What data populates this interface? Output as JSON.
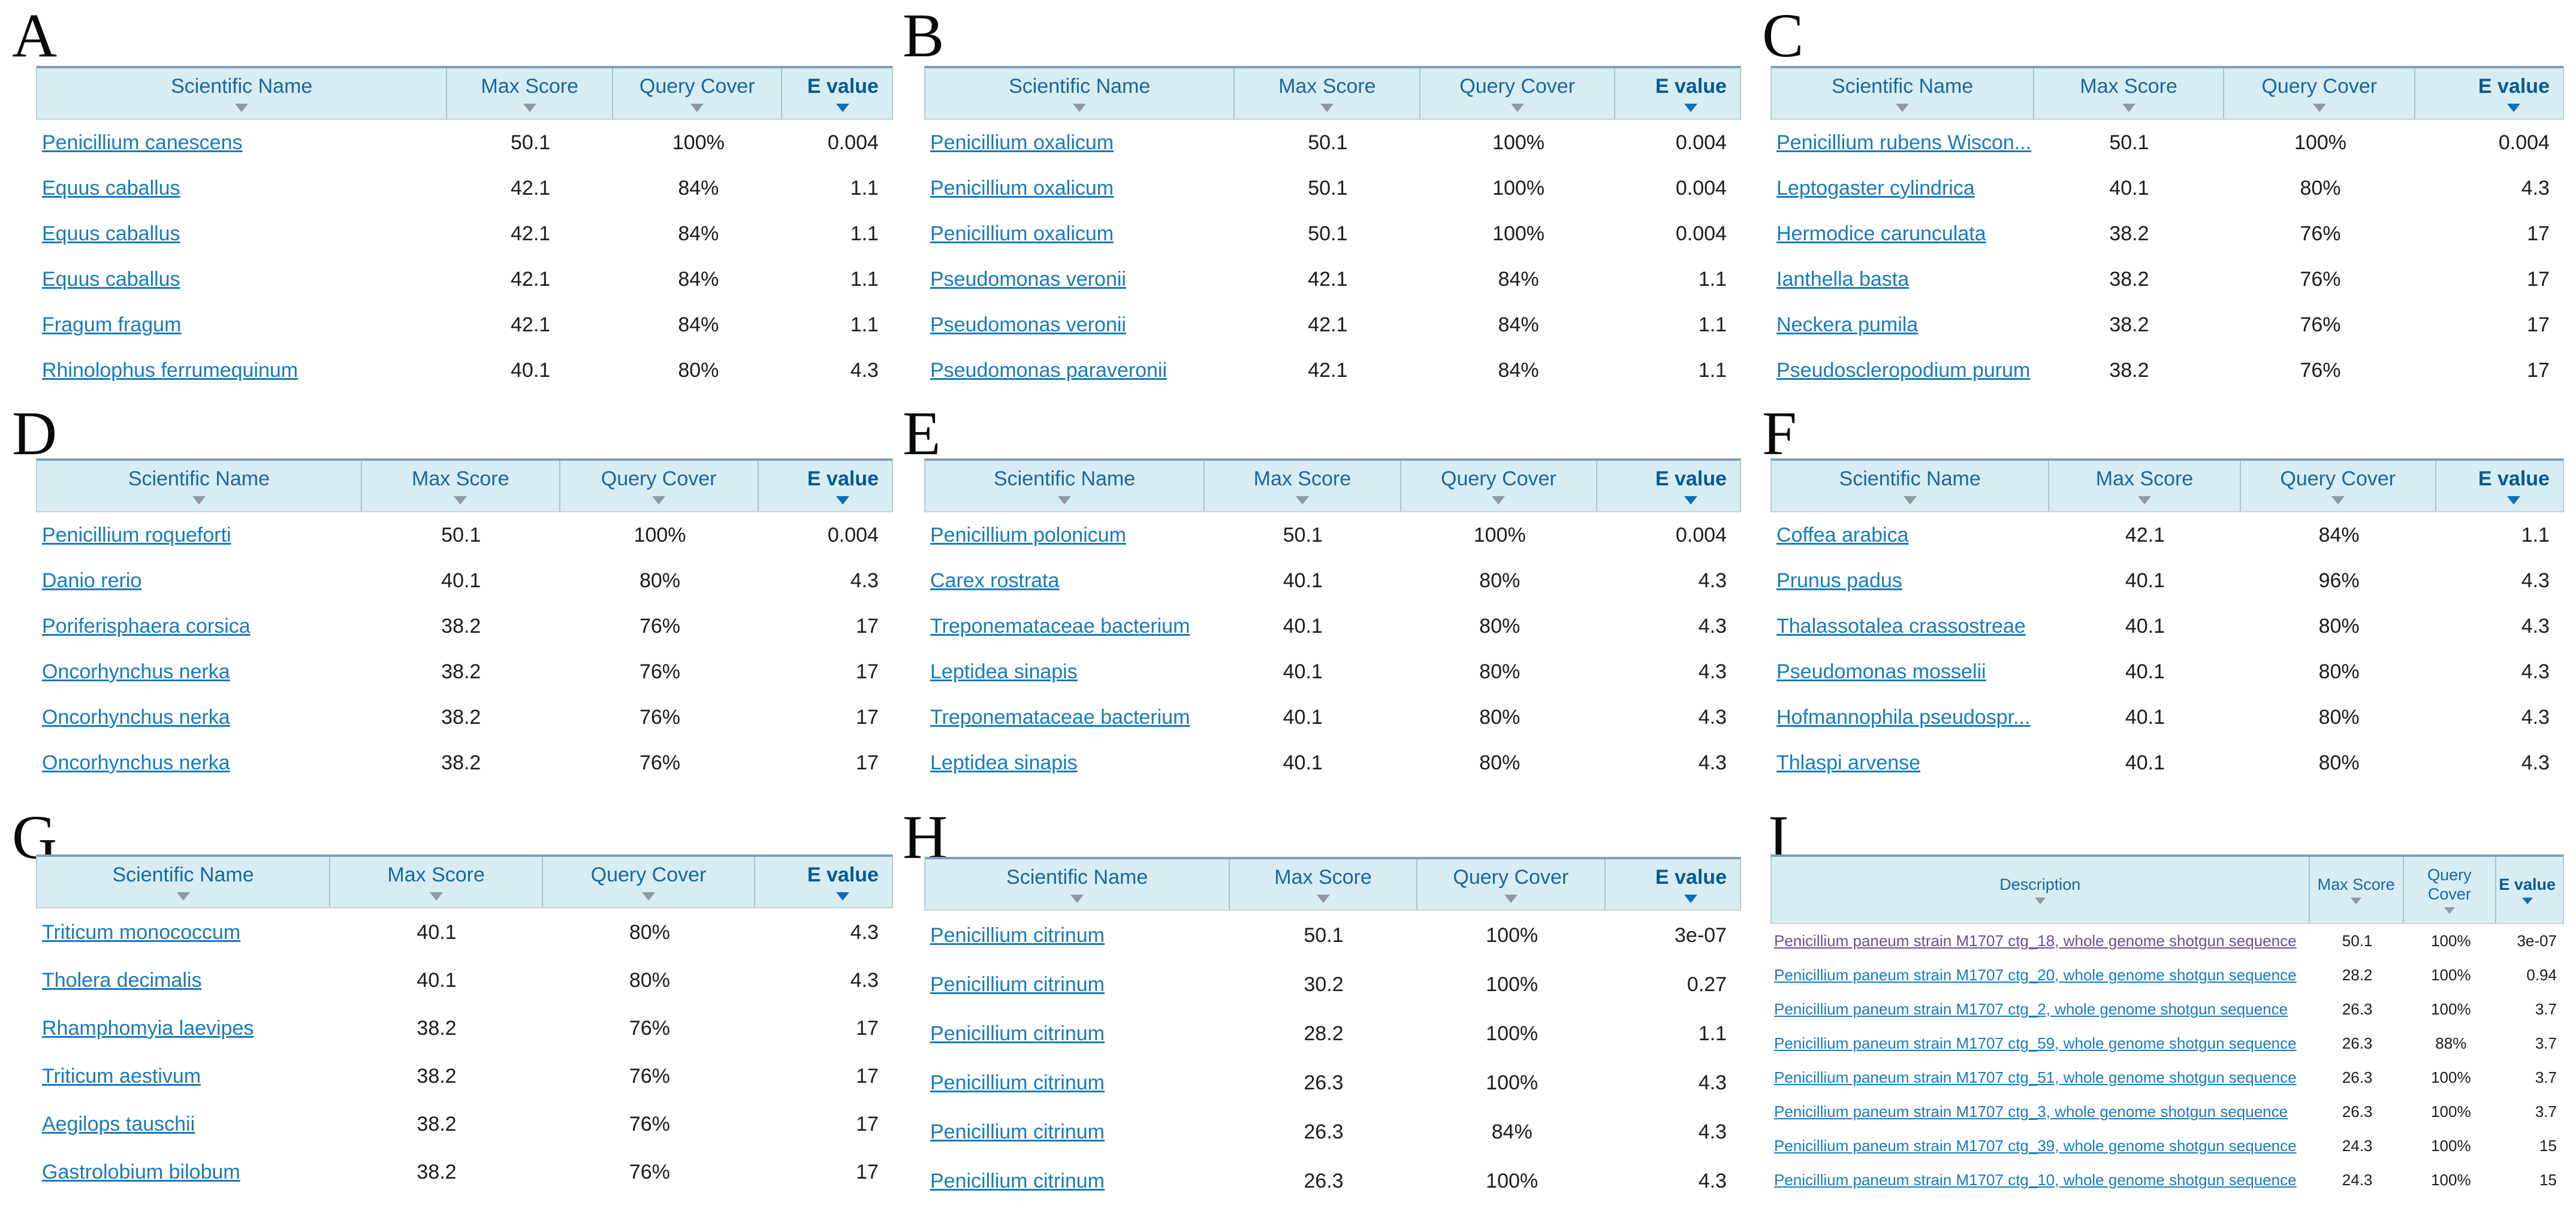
{
  "colors": {
    "header_bg": "#d8ecf4",
    "header_text": "#17689e",
    "evalue_header_text": "#005a94",
    "link": "#187abd",
    "link_visited": "#6a4c9f",
    "sort_inactive": "#8f999f",
    "sort_active": "#0b6fb5",
    "value_text": "#1c1c1c",
    "header_top_border": "#7d9fb8"
  },
  "icons": {
    "sort": "sort-descending-triangle"
  },
  "figure": {
    "panels": [
      {
        "label": "A",
        "columns": [
          "Scientific Name",
          "Max Score",
          "Query Cover",
          "E value"
        ],
        "sorted_by": "E value",
        "rows": [
          {
            "name": "Penicillium canescens",
            "max_score": "50.1",
            "query_cover": "100%",
            "e_value": "0.004"
          },
          {
            "name": "Equus caballus",
            "max_score": "42.1",
            "query_cover": "84%",
            "e_value": "1.1"
          },
          {
            "name": "Equus caballus",
            "max_score": "42.1",
            "query_cover": "84%",
            "e_value": "1.1"
          },
          {
            "name": "Equus caballus",
            "max_score": "42.1",
            "query_cover": "84%",
            "e_value": "1.1"
          },
          {
            "name": "Fragum fragum",
            "max_score": "42.1",
            "query_cover": "84%",
            "e_value": "1.1"
          },
          {
            "name": "Rhinolophus ferrumequinum",
            "max_score": "40.1",
            "query_cover": "80%",
            "e_value": "4.3"
          }
        ]
      },
      {
        "label": "B",
        "columns": [
          "Scientific Name",
          "Max Score",
          "Query Cover",
          "E value"
        ],
        "sorted_by": "E value",
        "rows": [
          {
            "name": "Penicillium oxalicum",
            "max_score": "50.1",
            "query_cover": "100%",
            "e_value": "0.004"
          },
          {
            "name": "Penicillium oxalicum",
            "max_score": "50.1",
            "query_cover": "100%",
            "e_value": "0.004"
          },
          {
            "name": "Penicillium oxalicum",
            "max_score": "50.1",
            "query_cover": "100%",
            "e_value": "0.004"
          },
          {
            "name": "Pseudomonas veronii",
            "max_score": "42.1",
            "query_cover": "84%",
            "e_value": "1.1"
          },
          {
            "name": "Pseudomonas veronii",
            "max_score": "42.1",
            "query_cover": "84%",
            "e_value": "1.1"
          },
          {
            "name": "Pseudomonas paraveronii",
            "max_score": "42.1",
            "query_cover": "84%",
            "e_value": "1.1"
          }
        ]
      },
      {
        "label": "C",
        "columns": [
          "Scientific Name",
          "Max Score",
          "Query Cover",
          "E value"
        ],
        "sorted_by": "E value",
        "rows": [
          {
            "name": "Penicillium rubens Wiscon...",
            "max_score": "50.1",
            "query_cover": "100%",
            "e_value": "0.004"
          },
          {
            "name": "Leptogaster cylindrica",
            "max_score": "40.1",
            "query_cover": "80%",
            "e_value": "4.3"
          },
          {
            "name": "Hermodice carunculata",
            "max_score": "38.2",
            "query_cover": "76%",
            "e_value": "17"
          },
          {
            "name": "Ianthella basta",
            "max_score": "38.2",
            "query_cover": "76%",
            "e_value": "17"
          },
          {
            "name": "Neckera pumila",
            "max_score": "38.2",
            "query_cover": "76%",
            "e_value": "17"
          },
          {
            "name": "Pseudoscleropodium purum",
            "max_score": "38.2",
            "query_cover": "76%",
            "e_value": "17"
          }
        ]
      },
      {
        "label": "D",
        "columns": [
          "Scientific Name",
          "Max Score",
          "Query Cover",
          "E value"
        ],
        "sorted_by": "E value",
        "rows": [
          {
            "name": "Penicillium roqueforti",
            "max_score": "50.1",
            "query_cover": "100%",
            "e_value": "0.004"
          },
          {
            "name": "Danio rerio",
            "max_score": "40.1",
            "query_cover": "80%",
            "e_value": "4.3"
          },
          {
            "name": "Poriferisphaera corsica",
            "max_score": "38.2",
            "query_cover": "76%",
            "e_value": "17"
          },
          {
            "name": "Oncorhynchus nerka",
            "max_score": "38.2",
            "query_cover": "76%",
            "e_value": "17"
          },
          {
            "name": "Oncorhynchus nerka",
            "max_score": "38.2",
            "query_cover": "76%",
            "e_value": "17"
          },
          {
            "name": "Oncorhynchus nerka",
            "max_score": "38.2",
            "query_cover": "76%",
            "e_value": "17"
          }
        ]
      },
      {
        "label": "E",
        "columns": [
          "Scientific Name",
          "Max Score",
          "Query Cover",
          "E value"
        ],
        "sorted_by": "E value",
        "rows": [
          {
            "name": "Penicillium polonicum",
            "max_score": "50.1",
            "query_cover": "100%",
            "e_value": "0.004"
          },
          {
            "name": "Carex rostrata",
            "max_score": "40.1",
            "query_cover": "80%",
            "e_value": "4.3"
          },
          {
            "name": "Treponemataceae bacterium",
            "max_score": "40.1",
            "query_cover": "80%",
            "e_value": "4.3"
          },
          {
            "name": "Leptidea sinapis",
            "max_score": "40.1",
            "query_cover": "80%",
            "e_value": "4.3"
          },
          {
            "name": "Treponemataceae bacterium",
            "max_score": "40.1",
            "query_cover": "80%",
            "e_value": "4.3"
          },
          {
            "name": "Leptidea sinapis",
            "max_score": "40.1",
            "query_cover": "80%",
            "e_value": "4.3"
          }
        ]
      },
      {
        "label": "F",
        "columns": [
          "Scientific Name",
          "Max Score",
          "Query Cover",
          "E value"
        ],
        "sorted_by": "E value",
        "rows": [
          {
            "name": "Coffea arabica",
            "max_score": "42.1",
            "query_cover": "84%",
            "e_value": "1.1"
          },
          {
            "name": "Prunus padus",
            "max_score": "40.1",
            "query_cover": "96%",
            "e_value": "4.3"
          },
          {
            "name": "Thalassotalea crassostreae",
            "max_score": "40.1",
            "query_cover": "80%",
            "e_value": "4.3"
          },
          {
            "name": "Pseudomonas mosselii",
            "max_score": "40.1",
            "query_cover": "80%",
            "e_value": "4.3"
          },
          {
            "name": "Hofmannophila pseudospr...",
            "max_score": "40.1",
            "query_cover": "80%",
            "e_value": "4.3"
          },
          {
            "name": "Thlaspi arvense",
            "max_score": "40.1",
            "query_cover": "80%",
            "e_value": "4.3"
          }
        ]
      },
      {
        "label": "G",
        "columns": [
          "Scientific Name",
          "Max Score",
          "Query Cover",
          "E value"
        ],
        "sorted_by": "E value",
        "rows": [
          {
            "name": "Triticum monococcum",
            "max_score": "40.1",
            "query_cover": "80%",
            "e_value": "4.3"
          },
          {
            "name": "Tholera decimalis",
            "max_score": "40.1",
            "query_cover": "80%",
            "e_value": "4.3"
          },
          {
            "name": "Rhamphomyia laevipes",
            "max_score": "38.2",
            "query_cover": "76%",
            "e_value": "17"
          },
          {
            "name": "Triticum aestivum",
            "max_score": "38.2",
            "query_cover": "76%",
            "e_value": "17"
          },
          {
            "name": "Aegilops tauschii",
            "max_score": "38.2",
            "query_cover": "76%",
            "e_value": "17"
          },
          {
            "name": "Gastrolobium bilobum",
            "max_score": "38.2",
            "query_cover": "76%",
            "e_value": "17"
          }
        ]
      },
      {
        "label": "H",
        "columns": [
          "Scientific Name",
          "Max Score",
          "Query Cover",
          "E value"
        ],
        "sorted_by": "E value",
        "rows": [
          {
            "name": "Penicillium citrinum",
            "max_score": "50.1",
            "query_cover": "100%",
            "e_value": "3e-07"
          },
          {
            "name": "Penicillium citrinum",
            "max_score": "30.2",
            "query_cover": "100%",
            "e_value": "0.27"
          },
          {
            "name": "Penicillium citrinum",
            "max_score": "28.2",
            "query_cover": "100%",
            "e_value": "1.1"
          },
          {
            "name": "Penicillium citrinum",
            "max_score": "26.3",
            "query_cover": "100%",
            "e_value": "4.3"
          },
          {
            "name": "Penicillium citrinum",
            "max_score": "26.3",
            "query_cover": "84%",
            "e_value": "4.3"
          },
          {
            "name": "Penicillium citrinum",
            "max_score": "26.3",
            "query_cover": "100%",
            "e_value": "4.3"
          }
        ]
      },
      {
        "label": "I",
        "columns": [
          "Description",
          "Max Score",
          "Query Cover",
          "E value"
        ],
        "sorted_by": "E value",
        "rows": [
          {
            "name": "Penicillium paneum strain M1707 ctg_18, whole genome shotgun sequence",
            "max_score": "50.1",
            "query_cover": "100%",
            "e_value": "3e-07",
            "visited": true
          },
          {
            "name": "Penicillium paneum strain M1707 ctg_20, whole genome shotgun sequence",
            "max_score": "28.2",
            "query_cover": "100%",
            "e_value": "0.94"
          },
          {
            "name": "Penicillium paneum strain M1707 ctg_2, whole genome shotgun sequence",
            "max_score": "26.3",
            "query_cover": "100%",
            "e_value": "3.7"
          },
          {
            "name": "Penicillium paneum strain M1707 ctg_59, whole genome shotgun sequence",
            "max_score": "26.3",
            "query_cover": "88%",
            "e_value": "3.7"
          },
          {
            "name": "Penicillium paneum strain M1707 ctg_51, whole genome shotgun sequence",
            "max_score": "26.3",
            "query_cover": "100%",
            "e_value": "3.7"
          },
          {
            "name": "Penicillium paneum strain M1707 ctg_3, whole genome shotgun sequence",
            "max_score": "26.3",
            "query_cover": "100%",
            "e_value": "3.7"
          },
          {
            "name": "Penicillium paneum strain M1707 ctg_39, whole genome shotgun sequence",
            "max_score": "24.3",
            "query_cover": "100%",
            "e_value": "15"
          },
          {
            "name": "Penicillium paneum strain M1707 ctg_10, whole genome shotgun sequence",
            "max_score": "24.3",
            "query_cover": "100%",
            "e_value": "15"
          }
        ]
      }
    ]
  }
}
